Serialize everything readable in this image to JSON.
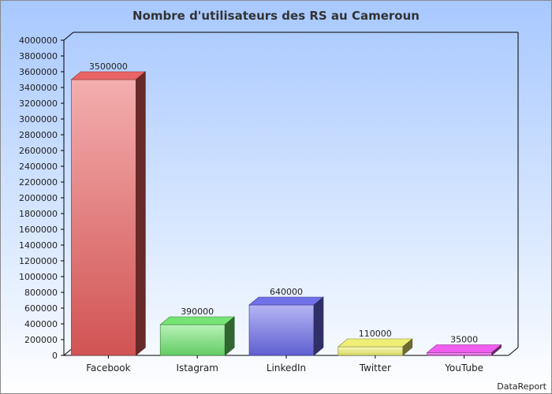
{
  "chart_data": {
    "type": "bar",
    "title": "Nombre d'utilisateurs des RS au Cameroun",
    "categories": [
      "Facebook",
      "Istagram",
      "LinkedIn",
      "Twitter",
      "YouTube"
    ],
    "values": [
      3500000,
      390000,
      640000,
      110000,
      35000
    ],
    "value_labels": [
      "3500000",
      "390000",
      "640000",
      "110000",
      "35000"
    ],
    "colors": [
      "#e85c5c",
      "#6ee36e",
      "#6a6ae8",
      "#eeee70",
      "#ee55ee"
    ],
    "ylim": [
      0,
      4000000
    ],
    "yticks": [
      0,
      200000,
      400000,
      600000,
      800000,
      1000000,
      1200000,
      1400000,
      1600000,
      1800000,
      2000000,
      2200000,
      2400000,
      2600000,
      2800000,
      3000000,
      3200000,
      3400000,
      3600000,
      3800000,
      4000000
    ],
    "grid": false,
    "style": "3d"
  },
  "footer": {
    "source": "DataReport"
  }
}
